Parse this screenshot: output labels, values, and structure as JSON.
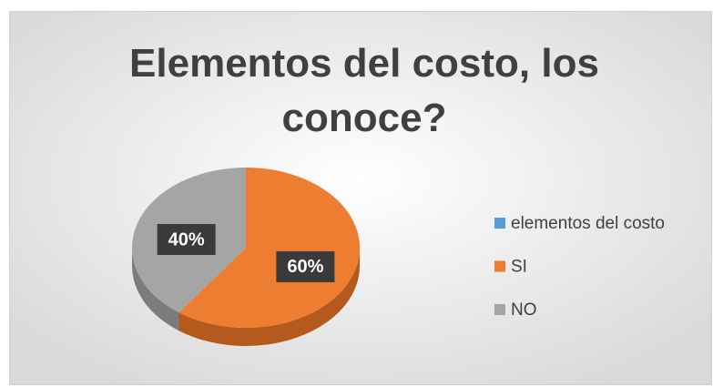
{
  "chart_data": {
    "type": "pie",
    "title": "Elementos del costo, los conoce?",
    "categories": [
      "elementos del costo",
      "SI",
      "NO"
    ],
    "values": [
      0,
      60,
      40
    ],
    "value_labels": [
      null,
      "60%",
      "40%"
    ],
    "colors": [
      "#5b9bd5",
      "#ed7d31",
      "#a5a5a5"
    ],
    "side_colors": [
      "#3f76a8",
      "#b45a1c",
      "#7c7c7c"
    ],
    "legend": "right"
  }
}
